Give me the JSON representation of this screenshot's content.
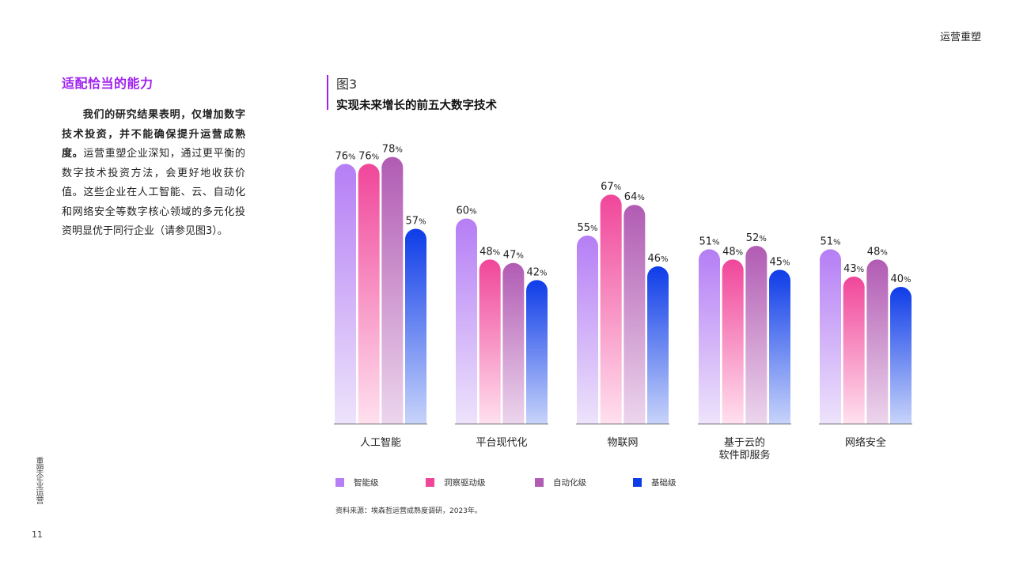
{
  "header": {
    "section": "运营重塑"
  },
  "sidebar": {
    "vertical_text": "重塑企业运营",
    "page_number": "11"
  },
  "left": {
    "title": "适配恰当的能力",
    "lead": "我们的研究结果表明，仅增加数字技术投资，并不能确保提升运营成熟度。",
    "body": "运营重塑企业深知，通过更平衡的数字技术投资方法，会更好地收获价值。这些企业在人工智能、云、自动化和网络安全等数字核心领域的多元化投资明显优于同行企业（请参见图3）。"
  },
  "figure": {
    "label": "图3",
    "title": "实现未来增长的前五大数字技术"
  },
  "legend": [
    {
      "label": "智能级",
      "color": "#b57ef5"
    },
    {
      "label": "洞察驱动级",
      "color": "#f0469a"
    },
    {
      "label": "自动化级",
      "color": "#b15bb3"
    },
    {
      "label": "基础级",
      "color": "#0e3ce8"
    }
  ],
  "source": "资料来源：埃森哲运营成熟度调研，2023年。",
  "chart_data": {
    "type": "bar",
    "title": "实现未来增长的前五大数字技术",
    "categories": [
      "人工智能",
      "平台现代化",
      "物联网",
      "基于云的\n软件即服务",
      "网络安全"
    ],
    "series": [
      {
        "name": "智能级",
        "values": [
          76,
          60,
          55,
          51,
          51
        ],
        "color_top": "#b57ef5",
        "color_bottom": "#ede3fb"
      },
      {
        "name": "洞察驱动级",
        "values": [
          76,
          48,
          67,
          48,
          43
        ],
        "color_top": "#f0469a",
        "color_bottom": "#ffe0ee"
      },
      {
        "name": "自动化级",
        "values": [
          78,
          47,
          64,
          52,
          48
        ],
        "color_top": "#b15bb3",
        "color_bottom": "#ecd5ec"
      },
      {
        "name": "基础级",
        "values": [
          57,
          42,
          46,
          45,
          40
        ],
        "color_top": "#0e3ce8",
        "color_bottom": "#c7d3fa"
      }
    ],
    "value_suffix": "%",
    "xlabel": "",
    "ylabel": "",
    "ylim": [
      0,
      80
    ],
    "grid": false
  }
}
